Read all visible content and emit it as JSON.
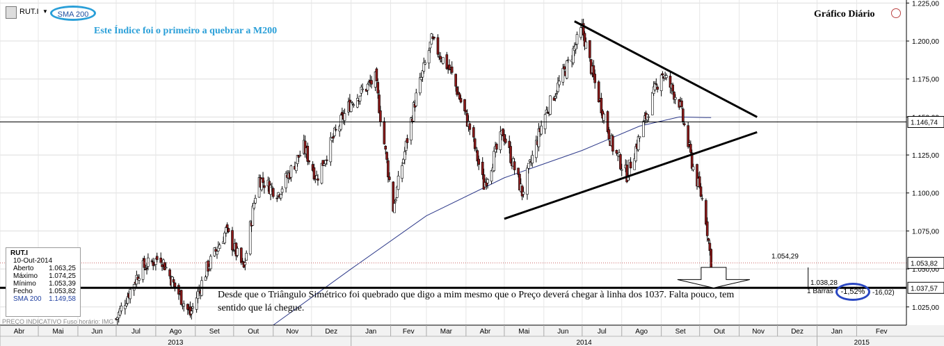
{
  "header": {
    "symbol": "RUT.I",
    "indicator_tag": "SMA 200",
    "note": "Este Índice foi o primeiro a quebrar a M200",
    "period_title": "Gráfico Diário"
  },
  "info_panel": {
    "symbol": "RUT.I",
    "date": "10-Out-2014",
    "rows": [
      {
        "label": "Aberto",
        "value": "1.063,25"
      },
      {
        "label": "Máximo",
        "value": "1.074,25"
      },
      {
        "label": "Mínimo",
        "value": "1.053,39"
      },
      {
        "label": "Fecho",
        "value": "1.053,82"
      },
      {
        "label": "SMA 200",
        "value": "1.149,58"
      }
    ]
  },
  "footer_note": "PREÇO INDICATIVO   Fuso horário: IMG",
  "annotation": "Desde que o Triângulo Simétrico foi quebrado que digo a mim mesmo que o Preço deverá chegar à linha dos 1037. Falta pouco, tem sentido que lá chegue.",
  "level_labels": {
    "upper_line": "1.146,74",
    "last_price": "1.053,82",
    "target_line": "1.037,57",
    "price_note": "1.054,29",
    "target_note": "1.038,28"
  },
  "bars_info": {
    "label": "1 Barras",
    "percent": "-1,52%",
    "points": "-16,02)"
  },
  "colors": {
    "bull": "#ffffff",
    "bear": "#8b1a1a",
    "sma": "#2e3a8a",
    "accent": "#2a9fd8",
    "circle_blue": "#2a47c2"
  },
  "chart_data": {
    "type": "candlestick",
    "title": "Gráfico Diário",
    "y_ticks": [
      "1.225,00",
      "1.200,00",
      "1.175,00",
      "1.150,00",
      "1.125,00",
      "1.100,00",
      "1.075,00",
      "1.050,00",
      "1.025,00"
    ],
    "y_tick_values": [
      1225,
      1200,
      1175,
      1150,
      1125,
      1100,
      1075,
      1050,
      1025
    ],
    "ylim": [
      1013,
      1227
    ],
    "x_months": [
      "Abr",
      "Mai",
      "Jun",
      "Jul",
      "Ago",
      "Set",
      "Out",
      "Nov",
      "Dez",
      "Jan",
      "Fev",
      "Mar",
      "Abr",
      "Mai",
      "Jun",
      "Jul",
      "Ago",
      "Set",
      "Out",
      "Nov",
      "Dez",
      "Jan",
      "Fev"
    ],
    "x_years": [
      "2013",
      "2014",
      "2015"
    ],
    "close_series": [
      {
        "x": "2013-07-01",
        "close": 1017
      },
      {
        "x": "2013-07-20",
        "close": 1050
      },
      {
        "x": "2013-08-05",
        "close": 1058
      },
      {
        "x": "2013-08-15",
        "close": 1040
      },
      {
        "x": "2013-08-28",
        "close": 1020
      },
      {
        "x": "2013-09-10",
        "close": 1050
      },
      {
        "x": "2013-09-25",
        "close": 1075
      },
      {
        "x": "2013-10-09",
        "close": 1050
      },
      {
        "x": "2013-10-20",
        "close": 1110
      },
      {
        "x": "2013-11-05",
        "close": 1100
      },
      {
        "x": "2013-11-25",
        "close": 1130
      },
      {
        "x": "2013-12-05",
        "close": 1110
      },
      {
        "x": "2013-12-20",
        "close": 1140
      },
      {
        "x": "2014-01-01",
        "close": 1160
      },
      {
        "x": "2014-01-20",
        "close": 1175
      },
      {
        "x": "2014-02-03",
        "close": 1090
      },
      {
        "x": "2014-02-20",
        "close": 1160
      },
      {
        "x": "2014-03-05",
        "close": 1200
      },
      {
        "x": "2014-03-20",
        "close": 1180
      },
      {
        "x": "2014-04-05",
        "close": 1140
      },
      {
        "x": "2014-04-15",
        "close": 1105
      },
      {
        "x": "2014-04-30",
        "close": 1140
      },
      {
        "x": "2014-05-15",
        "close": 1100
      },
      {
        "x": "2014-06-01",
        "close": 1150
      },
      {
        "x": "2014-06-20",
        "close": 1185
      },
      {
        "x": "2014-07-01",
        "close": 1208
      },
      {
        "x": "2014-07-10",
        "close": 1175
      },
      {
        "x": "2014-07-25",
        "close": 1130
      },
      {
        "x": "2014-08-05",
        "close": 1112
      },
      {
        "x": "2014-08-20",
        "close": 1150
      },
      {
        "x": "2014-09-01",
        "close": 1180
      },
      {
        "x": "2014-09-15",
        "close": 1160
      },
      {
        "x": "2014-09-25",
        "close": 1120
      },
      {
        "x": "2014-10-05",
        "close": 1090
      },
      {
        "x": "2014-10-10",
        "close": 1054
      }
    ],
    "sma_200": [
      {
        "x": "2013-11-01",
        "value": 1013
      },
      {
        "x": "2014-01-01",
        "value": 1050
      },
      {
        "x": "2014-03-01",
        "value": 1085
      },
      {
        "x": "2014-05-01",
        "value": 1110
      },
      {
        "x": "2014-07-01",
        "value": 1128
      },
      {
        "x": "2014-08-15",
        "value": 1144
      },
      {
        "x": "2014-09-15",
        "value": 1150
      },
      {
        "x": "2014-10-10",
        "value": 1149.58
      }
    ],
    "horizontal_lines": [
      1146.74,
      1037.57
    ],
    "triangle": {
      "upper": [
        {
          "x": "2014-06-25",
          "value": 1213
        },
        {
          "x": "2014-11-15",
          "value": 1150
        }
      ],
      "lower": [
        {
          "x": "2014-05-01",
          "value": 1083
        },
        {
          "x": "2014-11-15",
          "value": 1140
        }
      ]
    }
  }
}
